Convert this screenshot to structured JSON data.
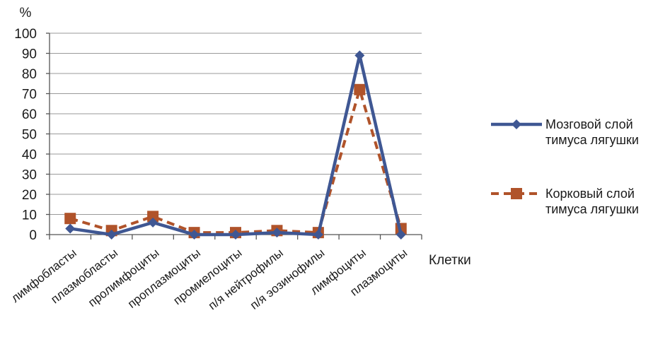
{
  "chart_data": {
    "type": "line",
    "ylabel": "%",
    "xlabel": "Клетки",
    "ylim": [
      0,
      100
    ],
    "yticks": [
      "0",
      "10",
      "20",
      "30",
      "40",
      "50",
      "60",
      "70",
      "80",
      "90",
      "100"
    ],
    "grid": true,
    "legend_position": "right",
    "categories": [
      "лимфобласты",
      "плазмобласты",
      "пролимфоциты",
      "проплазмоциты",
      "промиелоциты",
      "п/я нейтрофилы",
      "п/я эозинофилы",
      "лимфоциты",
      "плазмоциты"
    ],
    "series": [
      {
        "name_lines": [
          "Мозговой слой",
          "тимуса лягушки"
        ],
        "values": [
          3,
          0,
          6,
          0,
          0,
          1,
          0,
          89,
          0
        ],
        "color": "#3f5793",
        "style": "solid",
        "marker": "diamond"
      },
      {
        "name_lines": [
          "Корковый слой",
          "тимуса лягушки"
        ],
        "values": [
          8,
          2,
          9,
          1,
          1,
          2,
          1,
          72,
          3
        ],
        "color": "#b0532a",
        "style": "dashed",
        "marker": "square"
      }
    ]
  }
}
